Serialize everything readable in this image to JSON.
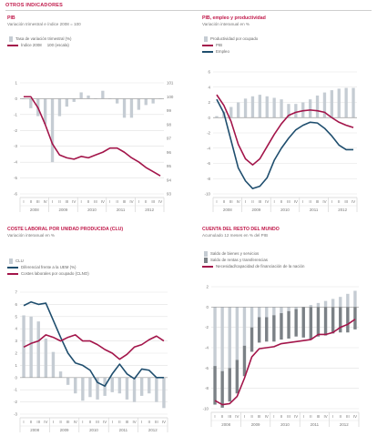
{
  "page_title": "OTROS INDICADORES",
  "colors": {
    "accent": "#a3154a",
    "navy": "#1f4e6e",
    "bar_light": "#c5ccd3",
    "bar_dark": "#7b8186"
  },
  "chart_data": [
    {
      "id": "pib",
      "type": "bar+line",
      "title": "PIB",
      "subtitle": "Variación trimestral e índice 2008 = 100",
      "legend": [
        "Tasa de variación trimestral (%)",
        "Índice 2008",
        "100 (escala)"
      ],
      "x_tick_labels": [
        "I",
        "II",
        "III",
        "IV",
        "I",
        "II",
        "III",
        "IV",
        "I",
        "II",
        "III",
        "IV",
        "I",
        "II",
        "III",
        "IV",
        "I",
        "II",
        "III",
        "IV"
      ],
      "year_labels": [
        "2008",
        "2009",
        "2010",
        "2011",
        "2012"
      ],
      "y_left_ticks": [
        "1",
        "0",
        "-1",
        "-2",
        "-3",
        "-4",
        "-5",
        "-6"
      ],
      "y_right_ticks": [
        "101",
        "100",
        "99",
        "98",
        "97",
        "96",
        "95",
        "94",
        "93"
      ],
      "ylim_left": [
        -6,
        1
      ],
      "ylim_right": [
        93,
        101
      ],
      "bars": [
        0.0,
        -0.6,
        -1.1,
        -1.6,
        -4.0,
        -1.1,
        -0.5,
        -0.2,
        0.4,
        0.2,
        0.0,
        0.5,
        0.0,
        -0.3,
        -1.2,
        -1.2,
        -0.7,
        -0.4,
        -0.3,
        0.0
      ],
      "line": [
        100.0,
        100.0,
        99.2,
        98.0,
        96.6,
        95.8,
        95.6,
        95.5,
        95.7,
        95.6,
        95.8,
        96.0,
        96.3,
        96.3,
        96.0,
        95.6,
        95.3,
        94.9,
        94.6,
        94.3
      ]
    },
    {
      "id": "pib-empleo",
      "type": "bar+line",
      "title": "PIB, empleo y productividad",
      "subtitle": "Variación interanual en %",
      "legend": [
        "Productividad por ocupado",
        "PIB",
        "Empleo"
      ],
      "x_tick_labels": [
        "I",
        "II",
        "III",
        "IV",
        "I",
        "II",
        "III",
        "IV",
        "I",
        "II",
        "III",
        "IV",
        "I",
        "II",
        "III",
        "IV",
        "I",
        "II",
        "III",
        "IV"
      ],
      "year_labels": [
        "2008",
        "2009",
        "2010",
        "2011",
        "2012"
      ],
      "y_ticks": [
        "6",
        "4",
        "2",
        "0",
        "-2",
        "-4",
        "-6",
        "-8",
        "-10"
      ],
      "ylim": [
        -10,
        6
      ],
      "bars": [
        0.2,
        0.8,
        1.4,
        2.0,
        2.5,
        2.8,
        3.0,
        2.8,
        2.6,
        2.4,
        1.8,
        1.8,
        2.0,
        2.4,
        2.9,
        3.3,
        3.6,
        3.8,
        3.9,
        3.9
      ],
      "series": [
        {
          "name": "PIB",
          "values": [
            3.0,
            1.6,
            -0.5,
            -3.5,
            -5.4,
            -6.2,
            -5.4,
            -3.8,
            -2.2,
            -0.8,
            0.3,
            0.7,
            0.9,
            1.0,
            0.9,
            0.7,
            0.0,
            -0.6,
            -1.0,
            -1.3
          ]
        },
        {
          "name": "Empleo",
          "values": [
            2.4,
            0.6,
            -3.0,
            -6.6,
            -8.3,
            -9.3,
            -9.0,
            -7.9,
            -5.6,
            -4.0,
            -2.7,
            -1.6,
            -1.0,
            -0.6,
            -0.7,
            -1.4,
            -2.4,
            -3.6,
            -4.2,
            -4.2
          ]
        }
      ]
    },
    {
      "id": "clu",
      "type": "bar+line",
      "title": "COSTE LABORAL POR UNIDAD PRODUCIDA (CLU)",
      "subtitle": "Variación interanual en %",
      "legend": [
        "CLU",
        "Diferencial frente a la UEM (%)",
        "Costes laborales por ocupado (CLNO)"
      ],
      "x_tick_labels": [
        "I",
        "II",
        "III",
        "IV",
        "I",
        "II",
        "III",
        "IV",
        "I",
        "II",
        "III",
        "IV",
        "I",
        "II",
        "III",
        "IV",
        "I",
        "II",
        "III",
        "IV"
      ],
      "year_labels": [
        "2008",
        "2009",
        "2010",
        "2011",
        "2012"
      ],
      "y_ticks": [
        "7",
        "6",
        "5",
        "4",
        "3",
        "2",
        "1",
        "0",
        "-1",
        "-2",
        "-3"
      ],
      "ylim": [
        -3,
        7
      ],
      "bars": [
        5.1,
        5.0,
        4.6,
        3.2,
        2.1,
        0.5,
        -0.6,
        -1.3,
        -1.9,
        -1.6,
        -1.8,
        -1.5,
        -1.2,
        -1.3,
        -1.8,
        -2.0,
        -1.5,
        -1.3,
        -2.0,
        -2.5
      ],
      "series": [
        {
          "name": "Diferencial frente a la UEM (%)",
          "values": [
            5.9,
            6.2,
            6.0,
            6.1,
            4.7,
            3.3,
            2.0,
            1.2,
            1.0,
            0.6,
            -0.4,
            -0.7,
            0.3,
            1.1,
            0.3,
            -0.1,
            0.7,
            0.6,
            0.0,
            0.0
          ]
        },
        {
          "name": "Costes laborales por ocupado (CLNO)",
          "values": [
            2.5,
            2.8,
            3.0,
            3.5,
            3.3,
            3.0,
            3.3,
            3.5,
            3.0,
            3.0,
            2.7,
            2.3,
            2.0,
            1.5,
            1.9,
            2.5,
            2.7,
            3.1,
            3.4,
            3.0
          ]
        }
      ]
    },
    {
      "id": "cuenta-resto",
      "type": "bar+line",
      "title": "CUENTA DEL RESTO DEL MUNDO",
      "subtitle": "Acumulado 12 meses en % del PIB",
      "legend": [
        "Saldo de bienes y servicios",
        "Saldo de rentas y transferencias",
        "Necesidad/capacidad de financiación de la nación"
      ],
      "x_tick_labels": [
        "I",
        "II",
        "III",
        "IV",
        "I",
        "II",
        "III",
        "IV",
        "I",
        "II",
        "III",
        "IV",
        "I",
        "II",
        "III",
        "IV",
        "I",
        "II",
        "III",
        "IV"
      ],
      "year_labels": [
        "2008",
        "2009",
        "2010",
        "2011",
        "2012"
      ],
      "y_ticks": [
        "2",
        "0",
        "-2",
        "-4",
        "-6",
        "-8",
        "-10"
      ],
      "ylim": [
        -10,
        2
      ],
      "series": [
        {
          "name": "Saldo de bienes y servicios",
          "values": [
            -5.8,
            -6.3,
            -6.0,
            -5.2,
            -3.8,
            -2.0,
            -1.0,
            -1.0,
            -0.8,
            -0.6,
            -0.4,
            -0.2,
            0.0,
            0.2,
            0.4,
            0.6,
            0.8,
            1.0,
            1.3,
            1.6
          ]
        },
        {
          "name": "Saldo de rentas y transferencias",
          "values": [
            -3.8,
            -3.6,
            -3.3,
            -3.3,
            -3.0,
            -2.4,
            -2.5,
            -2.4,
            -2.6,
            -2.6,
            -2.7,
            -2.7,
            -3.0,
            -3.2,
            -2.9,
            -2.8,
            -2.6,
            -2.5,
            -2.5,
            -2.2
          ]
        },
        {
          "name": "Necesidad/capacidad de financiación de la nación",
          "values": [
            -9.2,
            -9.6,
            -9.5,
            -8.8,
            -7.0,
            -4.9,
            -4.1,
            -4.0,
            -3.9,
            -3.6,
            -3.5,
            -3.4,
            -3.3,
            -3.2,
            -2.7,
            -2.7,
            -2.5,
            -2.0,
            -1.7,
            -1.2
          ]
        }
      ]
    }
  ]
}
